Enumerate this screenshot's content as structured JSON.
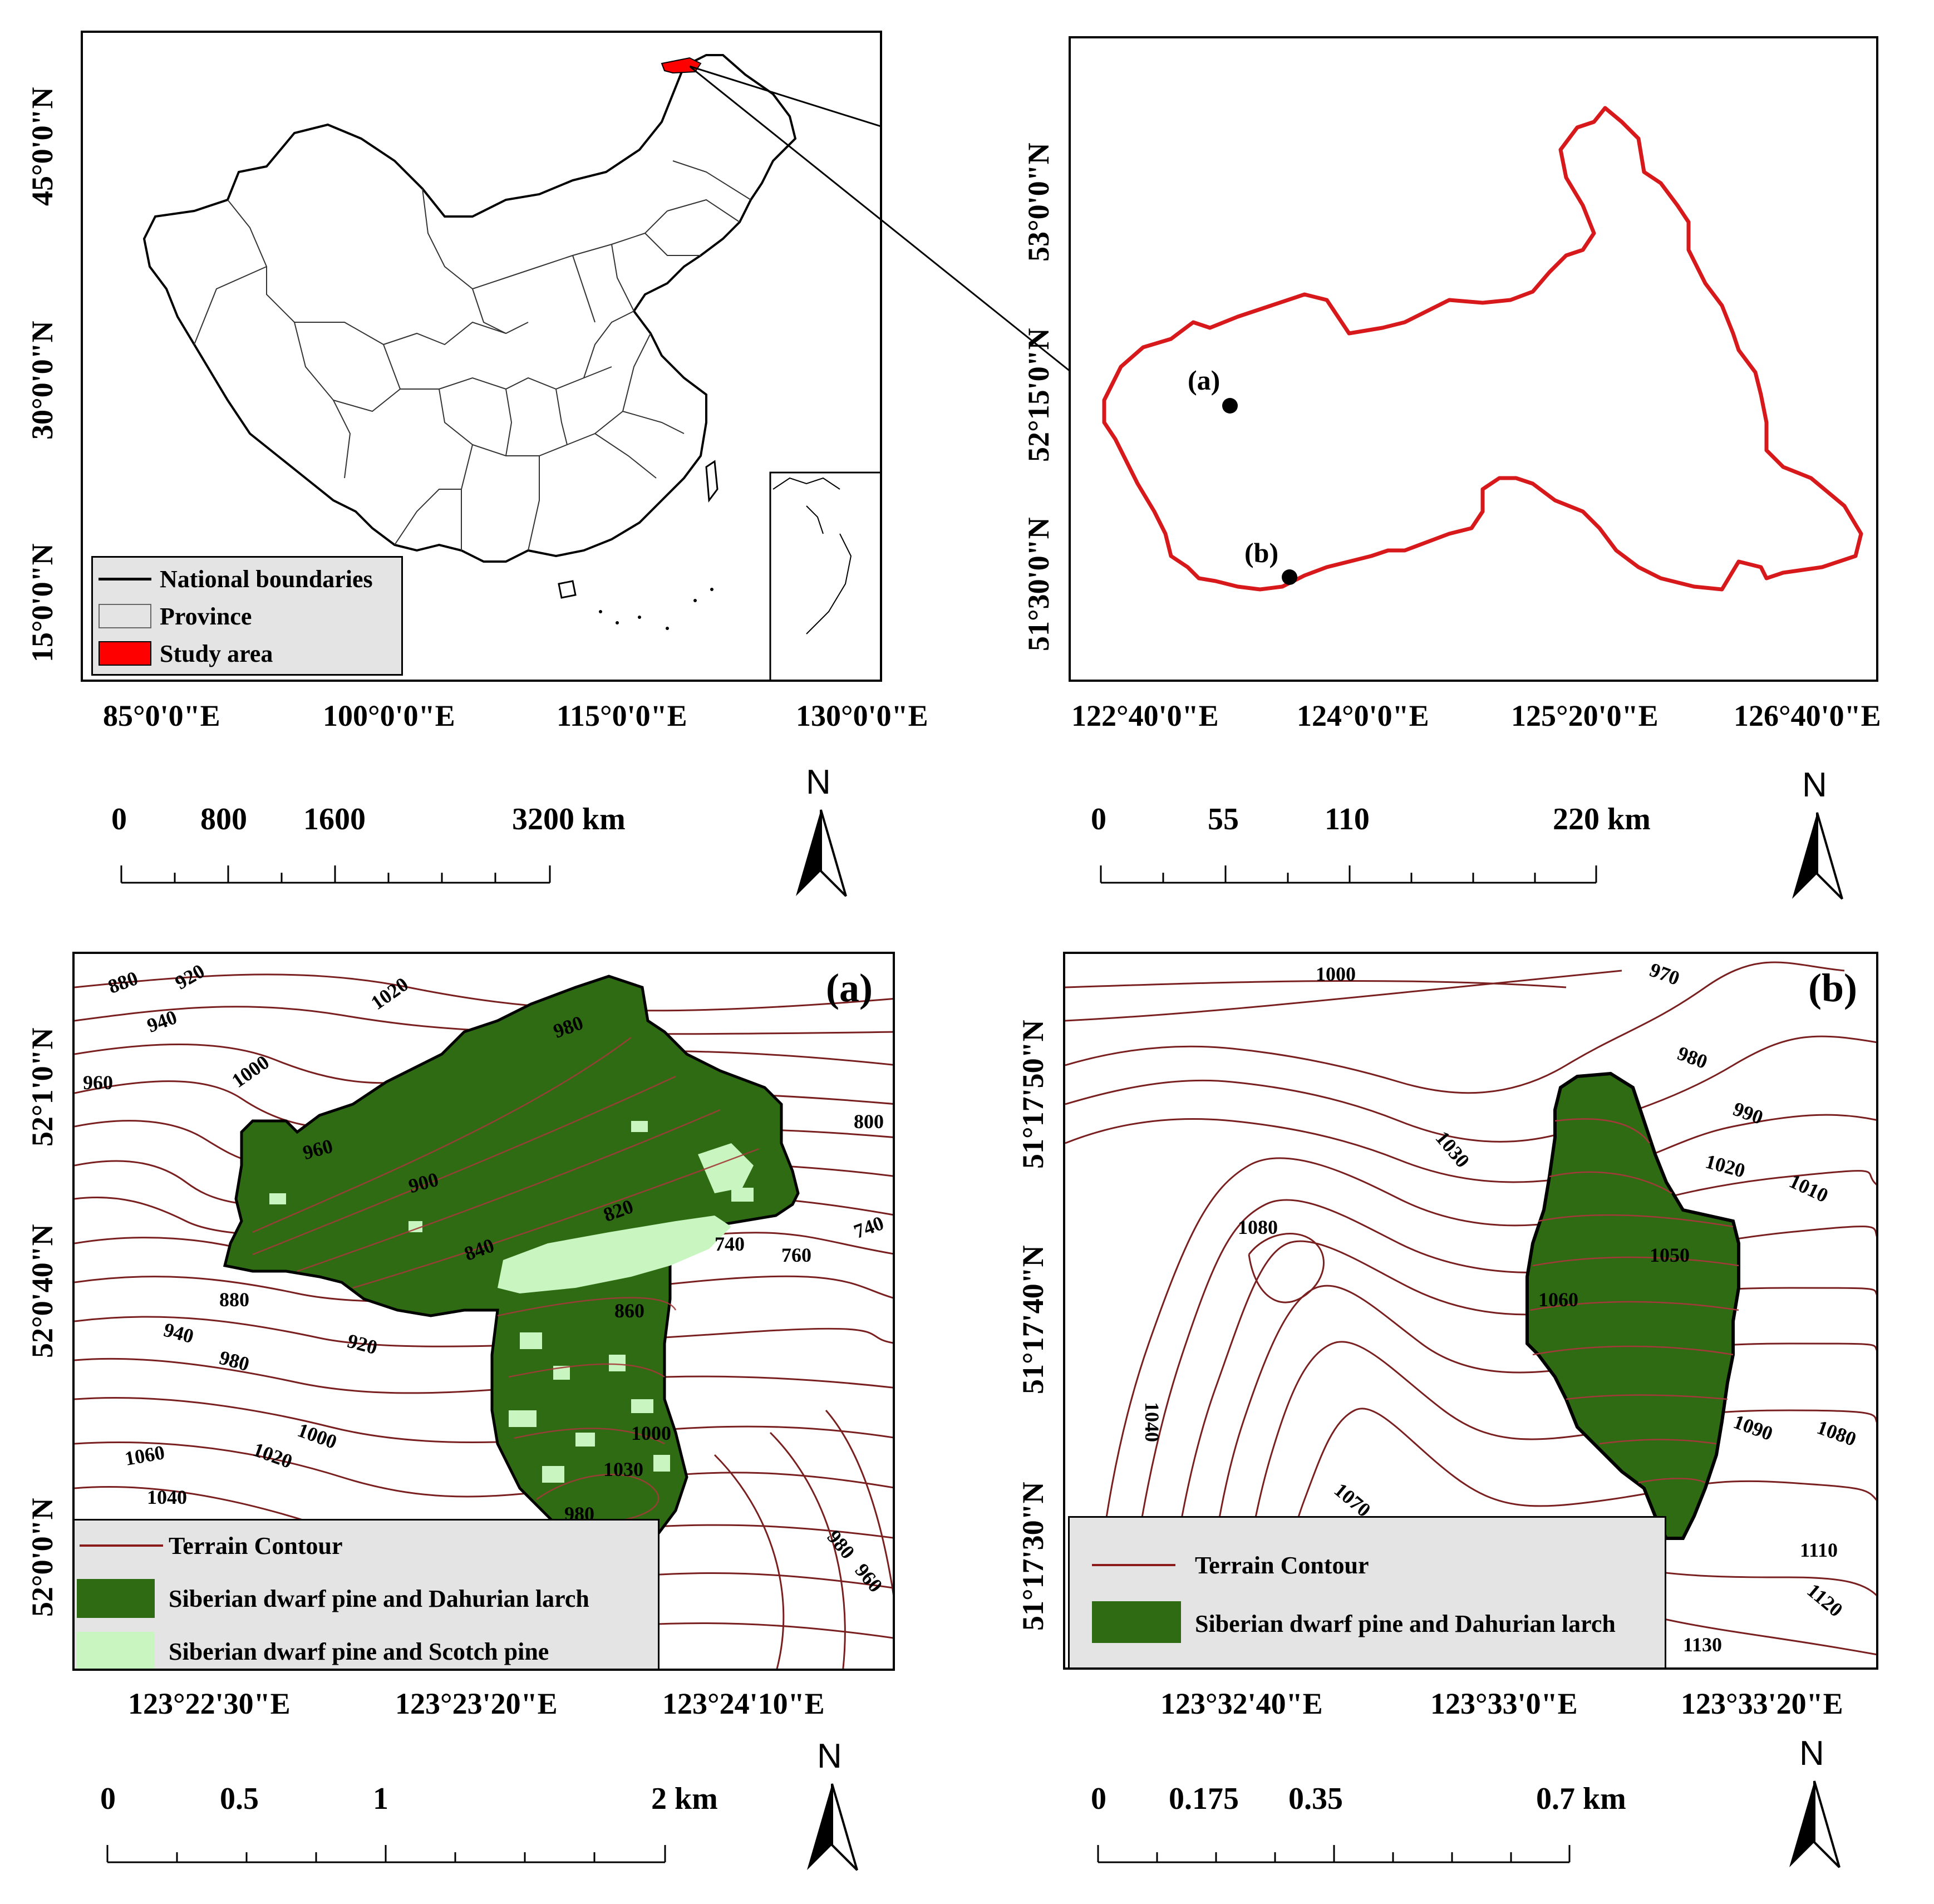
{
  "panel_china": {
    "y_ticks": [
      "45°0'0\"N",
      "30°0'0\"N",
      "15°0'0\"N"
    ],
    "x_ticks": [
      "85°0'0\"E",
      "100°0'0\"E",
      "115°0'0\"E",
      "130°0'0\"E"
    ],
    "legend": [
      {
        "label": "National boundaries",
        "swatch": "line"
      },
      {
        "label": "Province",
        "swatch": "box"
      },
      {
        "label": "Study area",
        "swatch": "red",
        "color": "#ff0000"
      }
    ],
    "scale": {
      "labels": [
        "0",
        "800",
        "1600",
        "3200 km"
      ]
    },
    "north": "N"
  },
  "panel_study": {
    "y_ticks": [
      "53°0'0\"N",
      "52°15'0\"N",
      "51°30'0\"N"
    ],
    "x_ticks": [
      "122°40'0\"E",
      "124°0'0\"E",
      "125°20'0\"E",
      "126°40'0\"E"
    ],
    "points": [
      {
        "label": "(a)"
      },
      {
        "label": "(b)"
      }
    ],
    "boundary_color": "#d7191c",
    "scale": {
      "labels": [
        "0",
        "55",
        "110",
        "220 km"
      ]
    },
    "north": "N"
  },
  "panel_a": {
    "tag": "(a)",
    "y_ticks": [
      "52°1'0\"N",
      "52°0'40\"N",
      "52°0'0\"N"
    ],
    "x_ticks": [
      "123°22'30\"E",
      "123°23'20\"E",
      "123°24'10\"E"
    ],
    "contour_labels": [
      "880",
      "920",
      "940",
      "960",
      "1000",
      "1020",
      "980",
      "960",
      "900",
      "820",
      "840",
      "800",
      "740",
      "760",
      "740",
      "880",
      "940",
      "920",
      "980",
      "860",
      "1000",
      "1060",
      "1020",
      "1000",
      "1040",
      "1030",
      "980",
      "980",
      "960"
    ],
    "legend": [
      {
        "label": "Terrain Contour",
        "swatch": "line",
        "color": "#8b1a1a"
      },
      {
        "label": "Siberian dwarf pine and Dahurian larch",
        "swatch": "fill",
        "color": "#2e6b12"
      },
      {
        "label": "Siberian dwarf pine and Scotch pine",
        "swatch": "fill",
        "color": "#c8f5c0"
      }
    ],
    "scale": {
      "labels": [
        "0",
        "0.5",
        "1",
        "2 km"
      ]
    },
    "north": "N"
  },
  "panel_b": {
    "tag": "(b)",
    "y_ticks": [
      "51°17'50\"N",
      "51°17'40\"N",
      "51°17'30\"N"
    ],
    "x_ticks": [
      "123°32'40\"E",
      "123°33'0\"E",
      "123°33'20\"E"
    ],
    "contour_labels": [
      "1000",
      "970",
      "980",
      "990",
      "1030",
      "1020",
      "1010",
      "1080",
      "1050",
      "1060",
      "1040",
      "1090",
      "1080",
      "1070",
      "1110",
      "1120",
      "1130"
    ],
    "legend": [
      {
        "label": "Terrain Contour",
        "swatch": "line",
        "color": "#8b1a1a"
      },
      {
        "label": "Siberian dwarf pine and Dahurian larch",
        "swatch": "fill",
        "color": "#2e6b12"
      }
    ],
    "scale": {
      "labels": [
        "0",
        "0.175",
        "0.35",
        "0.7 km"
      ]
    },
    "north": "N"
  }
}
